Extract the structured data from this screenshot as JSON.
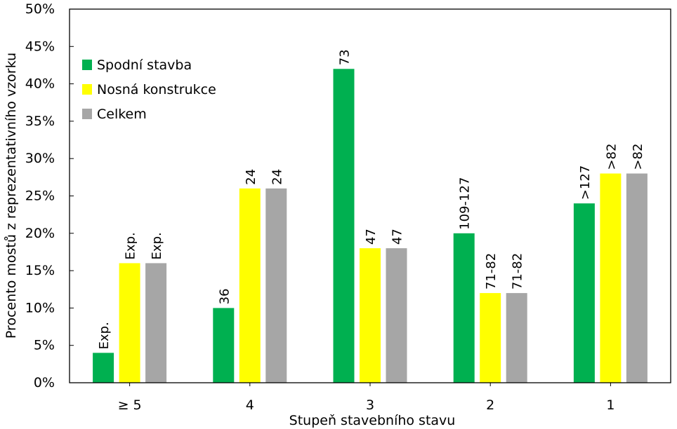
{
  "chart_data": {
    "type": "bar",
    "categories": [
      "≥ 5",
      "4",
      "3",
      "2",
      "1"
    ],
    "series": [
      {
        "name": "Spodní stavba",
        "color": "#00b050",
        "values": [
          4,
          10,
          42,
          20,
          24
        ],
        "labels": [
          "Exp.",
          "36",
          "73",
          "109-127",
          ">127"
        ]
      },
      {
        "name": "Nosná konstrukce",
        "color": "#ffff00",
        "values": [
          16,
          26,
          18,
          12,
          28
        ],
        "labels": [
          "Exp.",
          "24",
          "47",
          "71-82",
          ">82"
        ]
      },
      {
        "name": "Celkem",
        "color": "#a6a6a6",
        "values": [
          16,
          26,
          18,
          12,
          28
        ],
        "labels": [
          "Exp.",
          "24",
          "47",
          "71-82",
          ">82"
        ]
      }
    ],
    "ylim": [
      0,
      50
    ],
    "yticks": [
      0,
      5,
      10,
      15,
      20,
      25,
      30,
      35,
      40,
      45,
      50
    ],
    "ytick_suffix": "%",
    "xlabel": "Stupeň stavebního stavu",
    "ylabel": "Procento mostů z reprezentativního vzorku",
    "legend": "top-left",
    "grid": false
  }
}
